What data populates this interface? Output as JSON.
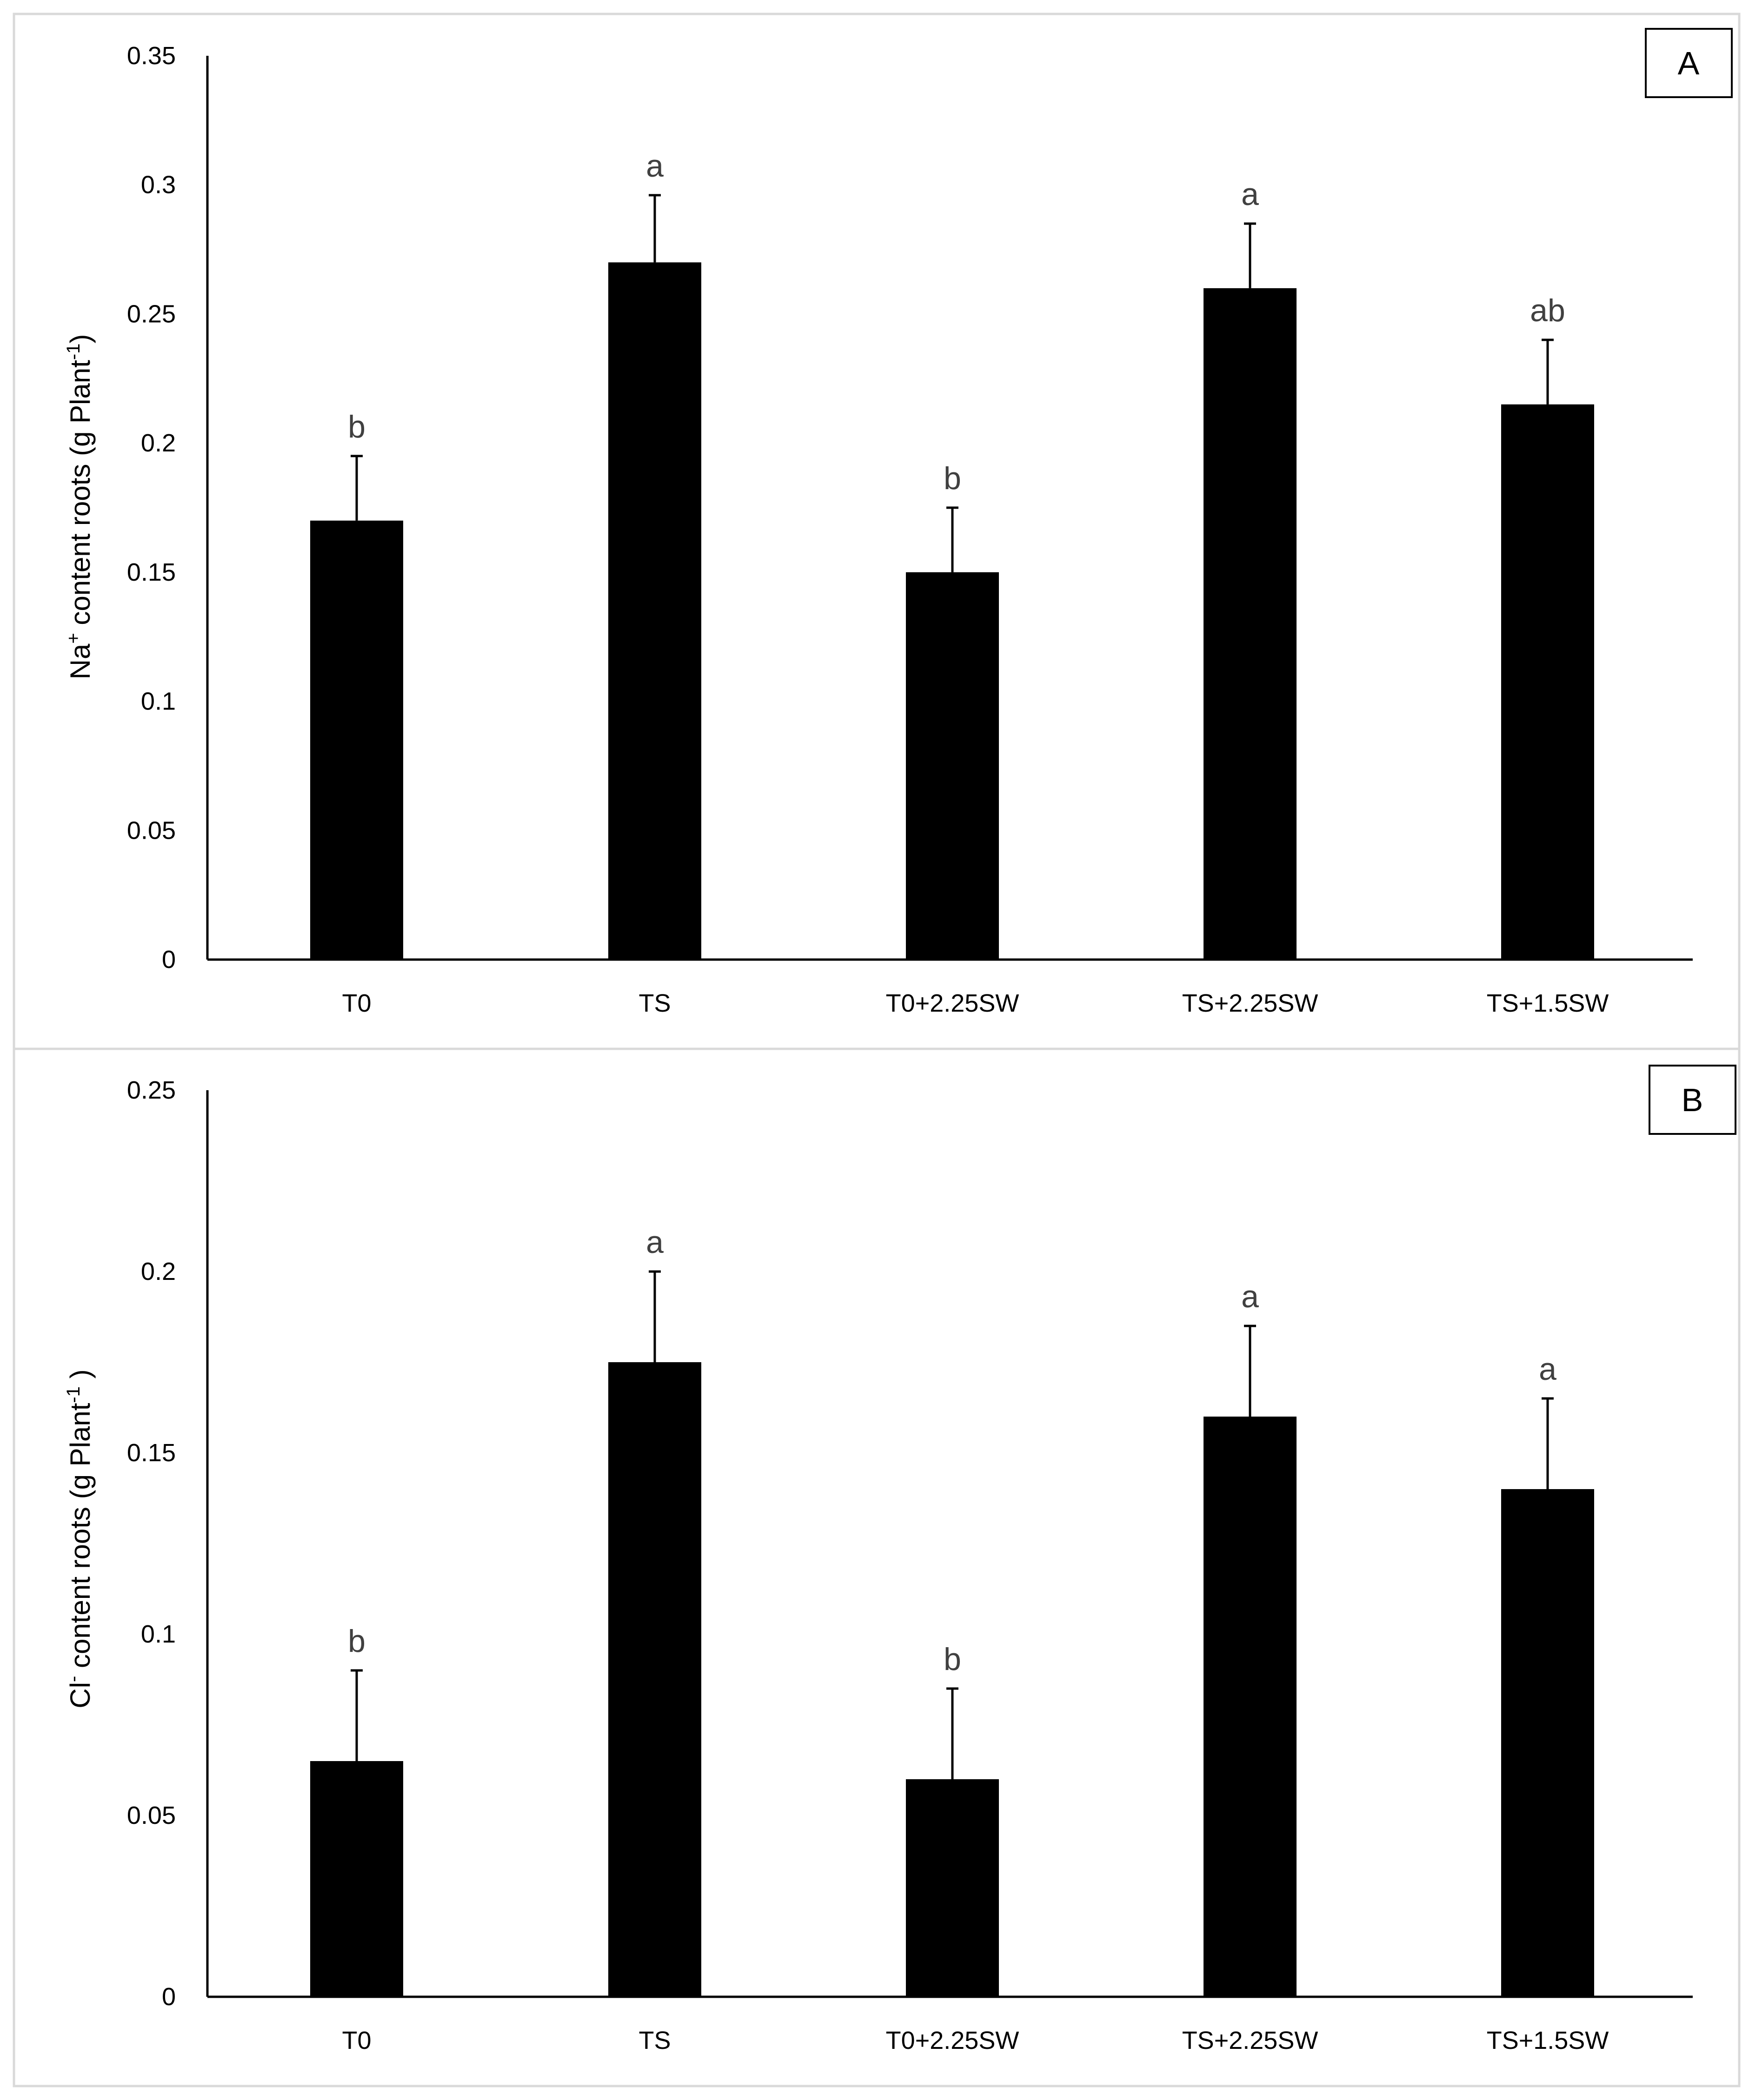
{
  "chart_data": [
    {
      "type": "bar",
      "panel": "A",
      "categories": [
        "T0",
        "TS",
        "T0+2.25SW",
        "TS+2.25SW",
        "TS+1.5SW"
      ],
      "values": [
        0.17,
        0.27,
        0.15,
        0.26,
        0.215
      ],
      "errors": [
        0.025,
        0.026,
        0.025,
        0.025,
        0.025
      ],
      "significance": [
        "b",
        "a",
        "b",
        "a",
        "ab"
      ],
      "ylabel": {
        "main": "Na",
        "sup1": "+",
        "mid": " content roots (g Plant",
        "sup2": "-1",
        "end": ")"
      },
      "ylim": [
        0,
        0.35
      ],
      "yticks": [
        "0",
        "0.05",
        "0.1",
        "0.15",
        "0.2",
        "0.25",
        "0.3",
        "0.35"
      ],
      "bar_color": "#000000",
      "grid": false
    },
    {
      "type": "bar",
      "panel": "B",
      "categories": [
        "T0",
        "TS",
        "T0+2.25SW",
        "TS+2.25SW",
        "TS+1.5SW"
      ],
      "values": [
        0.065,
        0.175,
        0.06,
        0.16,
        0.14
      ],
      "errors": [
        0.025,
        0.025,
        0.025,
        0.025,
        0.025
      ],
      "significance": [
        "b",
        "a",
        "b",
        "a",
        "a"
      ],
      "ylabel": {
        "main": "Cl",
        "sup1": "-",
        "mid": " content roots (g Plant",
        "sup2": "-1",
        "end": " )"
      },
      "ylim": [
        0,
        0.25
      ],
      "yticks": [
        "0",
        "0.05",
        "0.1",
        "0.15",
        "0.2",
        "0.25"
      ],
      "bar_color": "#000000",
      "grid": false
    }
  ]
}
